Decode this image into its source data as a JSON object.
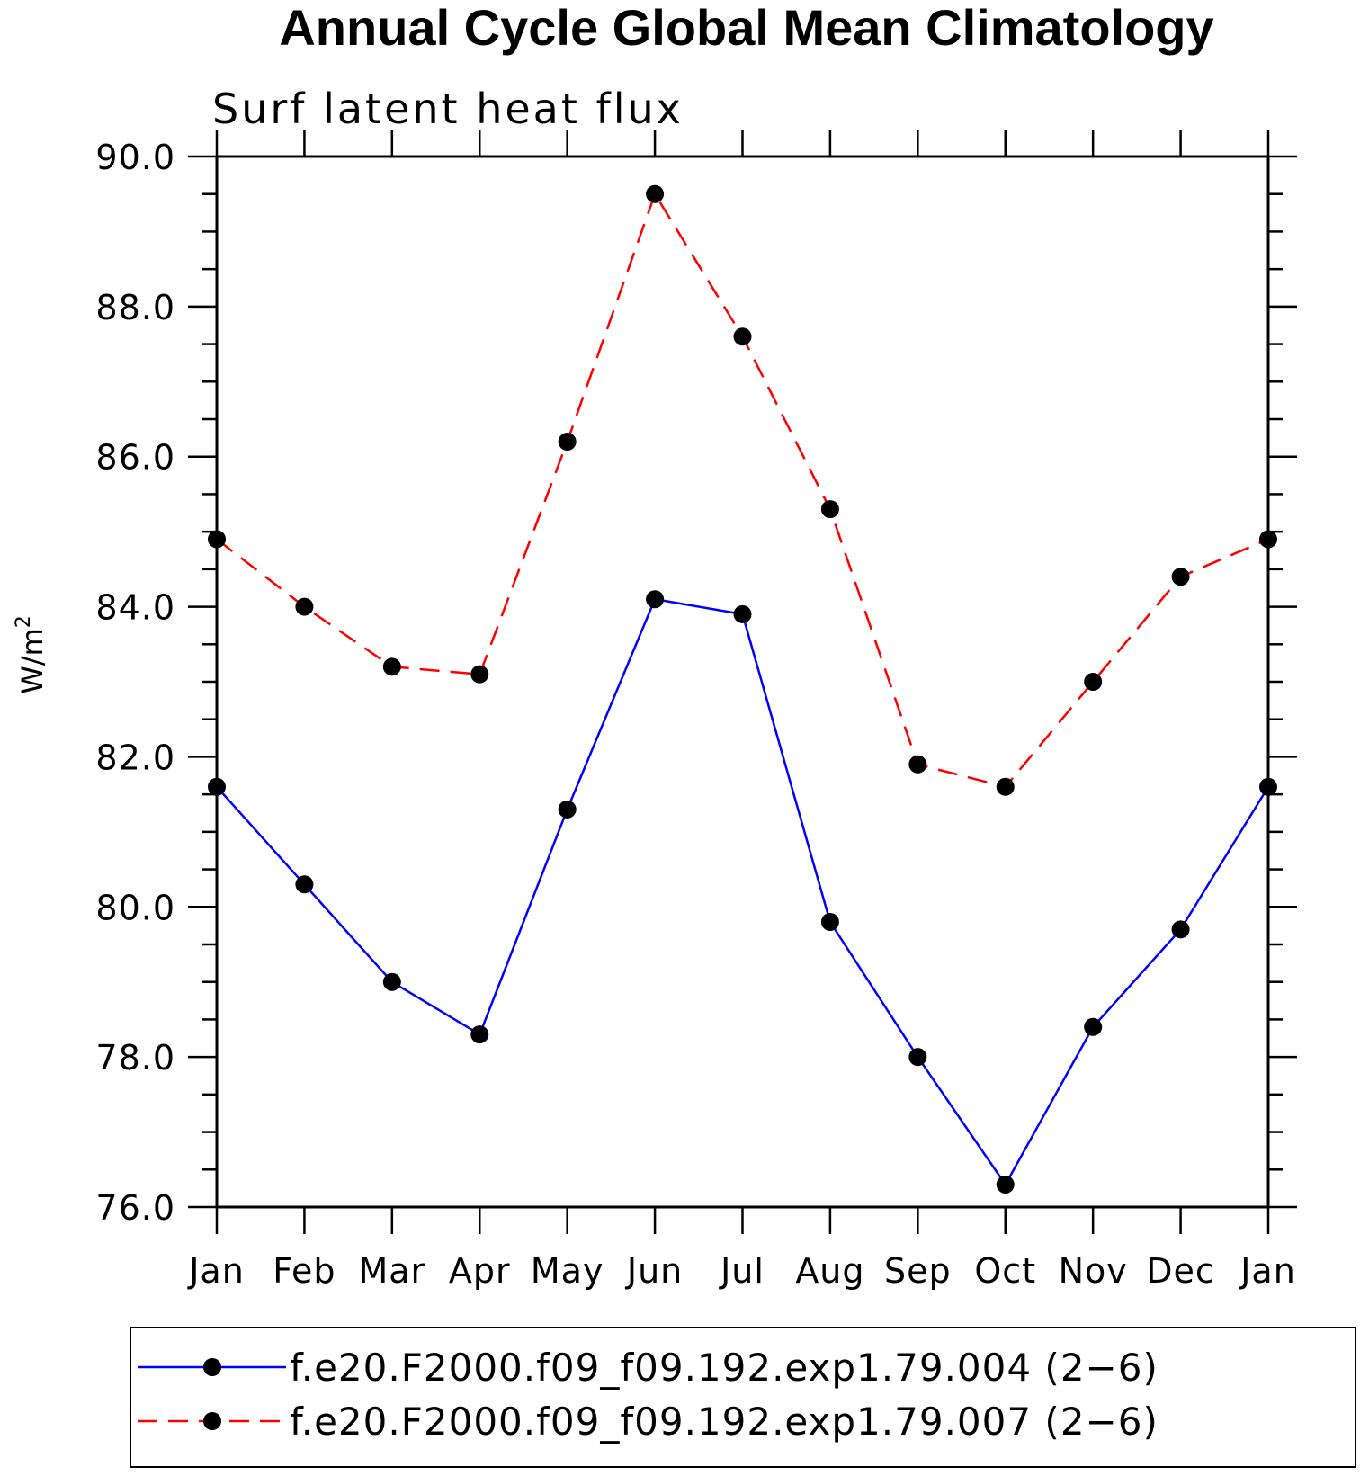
{
  "chart_data": {
    "type": "line",
    "title": "Annual Cycle Global Mean Climatology",
    "subtitle": "Surf latent heat flux",
    "ylabel": "W/m",
    "ylabel_superscript": "2",
    "xlabel": "",
    "categories": [
      "Jan",
      "Feb",
      "Mar",
      "Apr",
      "May",
      "Jun",
      "Jul",
      "Aug",
      "Sep",
      "Oct",
      "Nov",
      "Dec",
      "Jan"
    ],
    "ylim": [
      76.0,
      90.0
    ],
    "yticks": [
      "76.0",
      "78.0",
      "80.0",
      "82.0",
      "84.0",
      "86.0",
      "88.0",
      "90.0"
    ],
    "grid": false,
    "legend_position": "bottom",
    "series": [
      {
        "name": "f.e20.F2000.f09_f09.192.exp1.79.004 (2−6)",
        "color": "#0000ff",
        "dash": "solid",
        "marker": "filled-circle",
        "values": [
          81.6,
          80.3,
          79.0,
          78.3,
          81.3,
          84.1,
          83.9,
          79.8,
          78.0,
          76.3,
          78.4,
          79.7,
          81.6
        ]
      },
      {
        "name": "f.e20.F2000.f09_f09.192.exp1.79.007 (2−6)",
        "color": "#ff0000",
        "dash": "dashed",
        "marker": "filled-circle",
        "values": [
          84.9,
          84.0,
          83.2,
          83.1,
          86.2,
          89.5,
          87.6,
          85.3,
          81.9,
          81.6,
          83.0,
          84.4,
          84.9
        ]
      }
    ]
  }
}
